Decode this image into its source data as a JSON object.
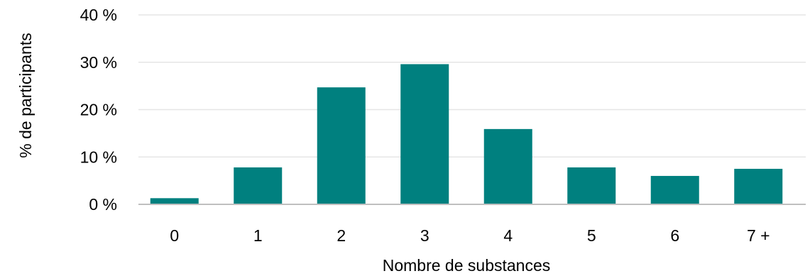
{
  "chart_data": {
    "type": "bar",
    "categories": [
      "0",
      "1",
      "2",
      "3",
      "4",
      "5",
      "6",
      "7 +"
    ],
    "values": [
      1.3,
      7.8,
      24.7,
      29.6,
      15.9,
      7.8,
      6.0,
      7.5
    ],
    "title": "",
    "xlabel": "Nombre de substances",
    "ylabel": "% de participants",
    "ylim": [
      0,
      40
    ],
    "yticks": [
      0,
      10,
      20,
      30,
      40
    ],
    "ytick_labels": [
      "0 %",
      "10 %",
      "20 %",
      "30 %",
      "40 %"
    ],
    "grid": true,
    "legend": "none",
    "colors": {
      "bar": "#00807F",
      "gridline": "#E6E6E6",
      "axis": "#BFBFBF"
    }
  }
}
